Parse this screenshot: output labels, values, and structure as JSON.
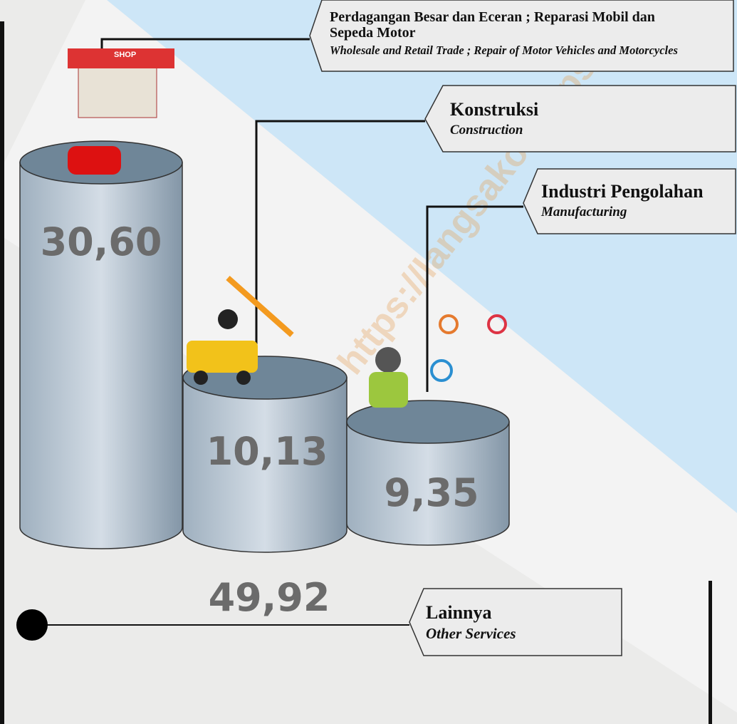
{
  "watermark": "https://langsakota.bps.go.id",
  "sectors": [
    {
      "label_id": "Perdagangan Besar dan Eceran ; Reparasi Mobil dan Sepeda Motor",
      "label_en": "Wholesale and Retail Trade ; Repair of Motor Vehicles and Motorcycles",
      "value": "30,60"
    },
    {
      "label_id": "Konstruksi",
      "label_en": "Construction",
      "value": "10,13"
    },
    {
      "label_id": "Industri Pengolahan",
      "label_en": "Manufacturing",
      "value": "9,35"
    },
    {
      "label_id": "Lainnya",
      "label_en": "Other Services",
      "value": "49,92"
    }
  ]
}
